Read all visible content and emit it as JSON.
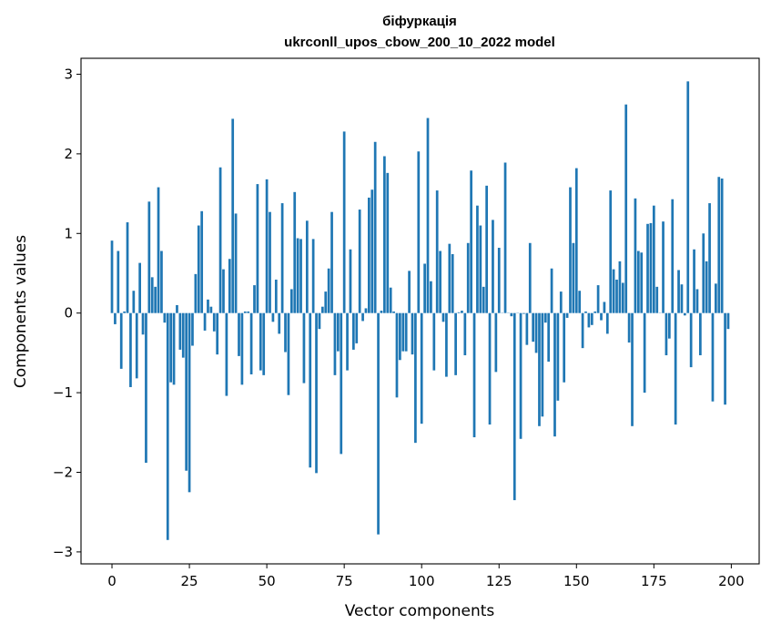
{
  "chart_data": {
    "type": "bar",
    "title": "біфуркація",
    "subtitle": "ukrconll_upos_cbow_200_10_2022 model",
    "xlabel": "Vector components",
    "ylabel": "Components values",
    "xlim": [
      -10,
      209
    ],
    "ylim": [
      -3.15,
      3.2
    ],
    "xticks": [
      0,
      25,
      50,
      75,
      100,
      125,
      150,
      175,
      200
    ],
    "yticks": [
      -3,
      -2,
      -1,
      0,
      1,
      2,
      3
    ],
    "ytick_labels": [
      "−3",
      "−2",
      "−1",
      "0",
      "1",
      "2",
      "3"
    ],
    "bar_color": "#1f77b4",
    "grid": false,
    "values": [
      0.91,
      -0.14,
      0.78,
      -0.7,
      0.02,
      1.14,
      -0.93,
      0.28,
      -0.82,
      0.63,
      -0.27,
      -1.88,
      1.4,
      0.45,
      0.33,
      1.58,
      0.78,
      -0.12,
      -2.85,
      -0.87,
      -0.9,
      0.1,
      -0.46,
      -0.56,
      -1.98,
      -2.25,
      -0.41,
      0.49,
      1.1,
      1.28,
      -0.22,
      0.17,
      0.08,
      -0.23,
      -0.52,
      1.83,
      0.55,
      -1.04,
      0.68,
      2.44,
      1.25,
      -0.54,
      -0.9,
      0.02,
      0.02,
      -0.77,
      0.35,
      1.62,
      -0.72,
      -0.78,
      1.68,
      1.27,
      -0.11,
      0.42,
      -0.26,
      1.38,
      -0.49,
      -1.03,
      0.3,
      1.52,
      0.94,
      0.93,
      -0.88,
      1.16,
      -1.94,
      0.93,
      -2.01,
      -0.2,
      0.08,
      0.27,
      0.56,
      1.27,
      -0.78,
      -0.48,
      -1.77,
      2.28,
      -0.72,
      0.8,
      -0.46,
      -0.38,
      1.3,
      -0.1,
      0.06,
      1.45,
      1.55,
      2.15,
      -2.78,
      0.03,
      1.97,
      1.76,
      0.32,
      0.02,
      -1.06,
      -0.59,
      -0.48,
      -0.48,
      0.53,
      -0.52,
      -1.63,
      2.03,
      -1.39,
      0.62,
      2.45,
      0.4,
      -0.72,
      1.54,
      0.78,
      -0.11,
      -0.8,
      0.87,
      0.74,
      -0.78,
      0.01,
      0.03,
      -0.53,
      0.88,
      1.79,
      -1.56,
      1.35,
      1.1,
      0.33,
      1.6,
      -1.4,
      1.17,
      -0.74,
      0.82,
      0.0,
      1.89,
      0.0,
      -0.04,
      -2.35,
      0.0,
      -1.58,
      -0.01,
      -0.4,
      0.88,
      -0.36,
      -0.5,
      -1.42,
      -1.3,
      -0.12,
      -0.61,
      0.56,
      -1.55,
      -1.1,
      0.27,
      -0.87,
      -0.06,
      1.58,
      0.88,
      1.82,
      0.28,
      -0.44,
      0.02,
      -0.18,
      -0.15,
      0.02,
      0.35,
      -0.09,
      0.14,
      -0.26,
      1.54,
      0.55,
      0.42,
      0.65,
      0.38,
      2.62,
      -0.37,
      -1.42,
      1.44,
      0.78,
      0.76,
      -1.0,
      1.12,
      1.13,
      1.35,
      0.33,
      0.0,
      1.15,
      -0.53,
      -0.32,
      1.43,
      -1.4,
      0.54,
      0.36,
      -0.03,
      2.91,
      -0.68,
      0.8,
      0.3,
      -0.53,
      1.0,
      0.65,
      1.38,
      -1.11,
      0.37,
      1.71,
      1.69,
      -1.15,
      -0.2
    ]
  }
}
